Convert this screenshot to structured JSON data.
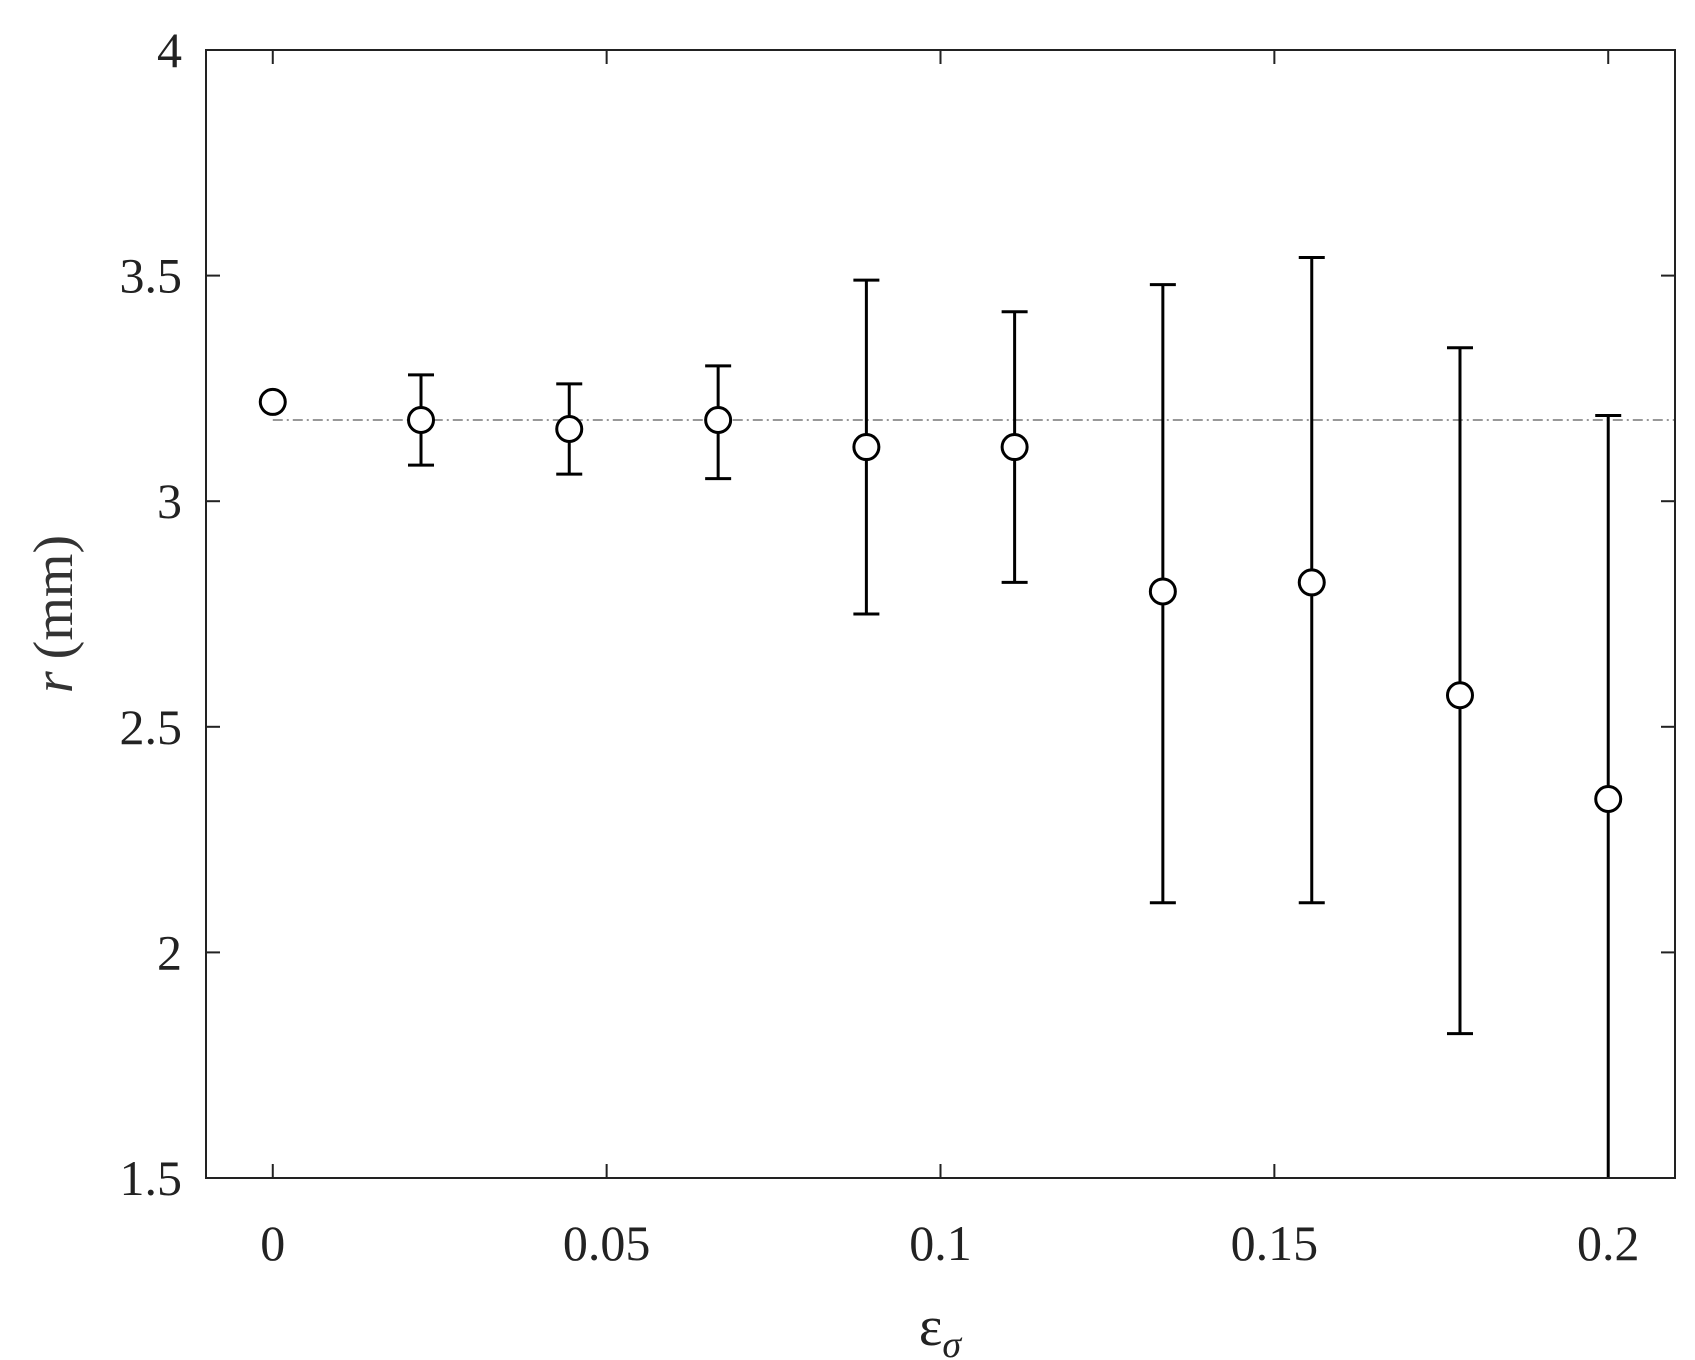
{
  "chart_data": {
    "type": "scatter",
    "xlabel": {
      "main": "ε",
      "subscript": "σ"
    },
    "ylabel": {
      "variable": "r",
      "unit": "(mm)"
    },
    "xlim": [
      -0.01,
      0.21
    ],
    "ylim": [
      1.5,
      4
    ],
    "xticks": [
      "0",
      "0.05",
      "0.1",
      "0.15",
      "0.2"
    ],
    "xtick_values": [
      0,
      0.05,
      0.1,
      0.15,
      0.2
    ],
    "yticks": [
      "1.5",
      "2",
      "2.5",
      "3",
      "3.5",
      "4"
    ],
    "ytick_values": [
      1.5,
      2,
      2.5,
      3,
      3.5,
      4
    ],
    "grid": false,
    "marker": "open-circle",
    "color": "#000000",
    "reference_line": {
      "y": 3.18,
      "style": "dash-dot",
      "color": "#777777"
    },
    "series": [
      {
        "points": [
          {
            "x": 0.0,
            "y": 3.22,
            "lower": 3.215,
            "upper": 3.225
          },
          {
            "x": 0.0222,
            "y": 3.18,
            "lower": 3.08,
            "upper": 3.28
          },
          {
            "x": 0.0444,
            "y": 3.16,
            "lower": 3.06,
            "upper": 3.26
          },
          {
            "x": 0.0667,
            "y": 3.18,
            "lower": 3.05,
            "upper": 3.3
          },
          {
            "x": 0.0889,
            "y": 3.12,
            "lower": 2.75,
            "upper": 3.49
          },
          {
            "x": 0.1111,
            "y": 3.12,
            "lower": 2.82,
            "upper": 3.42
          },
          {
            "x": 0.1333,
            "y": 2.8,
            "lower": 2.11,
            "upper": 3.48
          },
          {
            "x": 0.1556,
            "y": 2.82,
            "lower": 2.11,
            "upper": 3.54
          },
          {
            "x": 0.1778,
            "y": 2.57,
            "lower": 1.82,
            "upper": 3.34
          },
          {
            "x": 0.2,
            "y": 2.34,
            "lower": 1.5,
            "upper": 3.19
          }
        ]
      }
    ]
  }
}
